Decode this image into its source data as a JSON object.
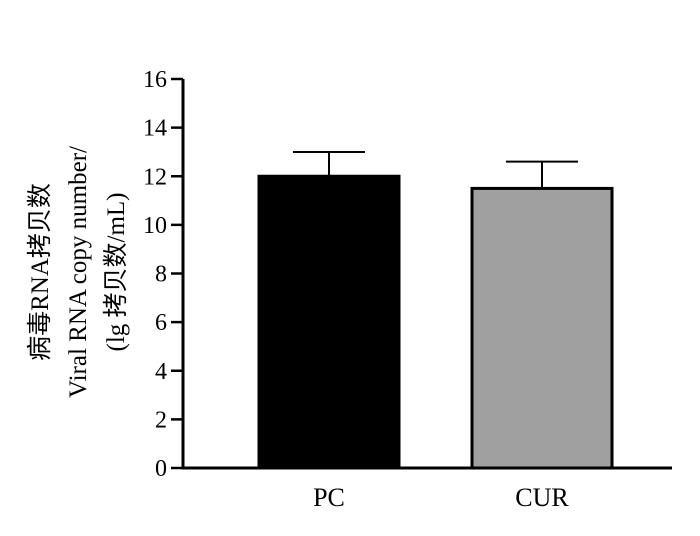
{
  "chart_data": {
    "type": "bar",
    "categories": [
      "PC",
      "CUR"
    ],
    "values": [
      12.0,
      11.5
    ],
    "error_upper": [
      13.0,
      12.6
    ],
    "bar_colors": [
      "#000000",
      "#a0a0a0"
    ],
    "ylim": [
      0,
      16
    ],
    "yticks": [
      0,
      2,
      4,
      6,
      8,
      10,
      12,
      14,
      16
    ],
    "ylabel_lines": [
      "病毒RNA拷贝数",
      "Viral RNA copy number/",
      "(lg 拷贝数/mL)"
    ],
    "xlabel": "",
    "title": "",
    "grid": false,
    "legend": "none"
  }
}
